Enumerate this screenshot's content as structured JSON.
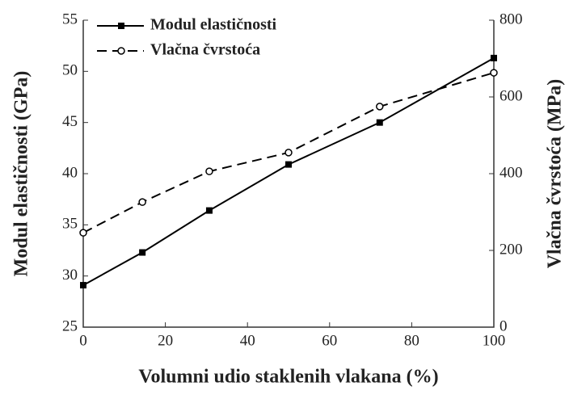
{
  "chart_data": {
    "type": "line",
    "x": [
      0,
      14.4,
      30.7,
      50,
      72.2,
      100
    ],
    "series": [
      {
        "name": "Modul elastičnosti",
        "color": "#000000",
        "line_style": "solid",
        "marker": "square",
        "axis": "y",
        "values": [
          29.1,
          32.3,
          36.4,
          40.9,
          45,
          51.3
        ]
      },
      {
        "name": "Vlačna čvrstoća",
        "color": "#000000",
        "line_style": "dashed",
        "marker": "open-circle",
        "axis": "y2",
        "values": [
          246,
          326,
          406,
          455,
          575,
          663
        ]
      }
    ],
    "xlabel": "Volumni udio staklenih vlakana  (%)",
    "ylabel": "Modul elastičnosti  (GPa)",
    "y2label": "Vlačna čvrstoća  (MPa)",
    "xlim": [
      0,
      100
    ],
    "xticks": [
      0,
      20,
      40,
      60,
      80,
      100
    ],
    "ylim": [
      25,
      55
    ],
    "yticks": [
      25,
      30,
      35,
      40,
      45,
      50,
      55
    ],
    "y2lim": [
      0,
      800
    ],
    "y2ticks": [
      0,
      200,
      400,
      600,
      800
    ],
    "legend": "upper left"
  }
}
